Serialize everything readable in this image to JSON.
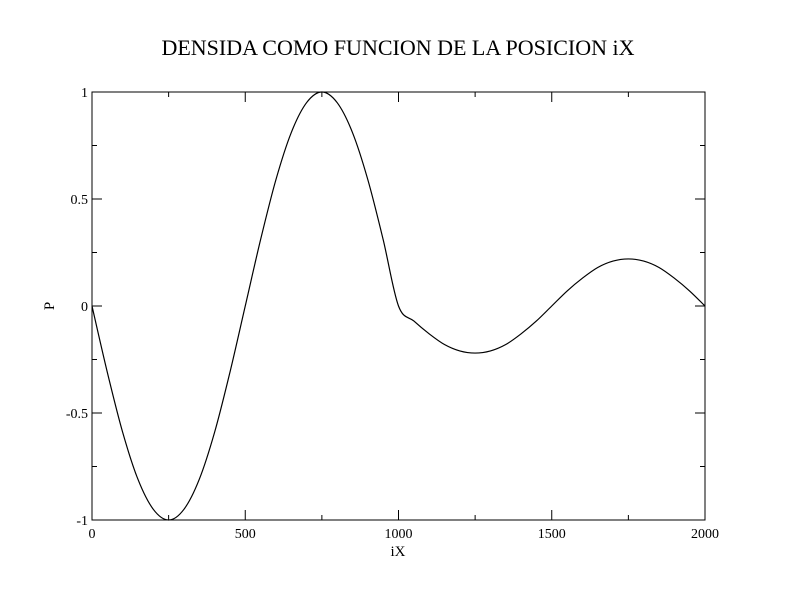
{
  "chart_data": {
    "type": "line",
    "title": "DENSIDA COMO FUNCION DE LA POSICION iX",
    "xlabel": "iX",
    "ylabel": "P",
    "xlim": [
      0,
      2000
    ],
    "ylim": [
      -1,
      1
    ],
    "x_ticks": [
      0,
      500,
      1000,
      1500,
      2000
    ],
    "x_tick_labels": [
      "0",
      "500",
      "1000",
      "1500",
      "2000"
    ],
    "y_ticks": [
      -1,
      -0.5,
      0,
      0.5,
      1
    ],
    "y_tick_labels": [
      "-1",
      "-0.5",
      "0",
      "0.5",
      "1"
    ],
    "grid": false,
    "legend": "none",
    "series": [
      {
        "color": "#000000",
        "x": [
          0,
          50,
          100,
          150,
          200,
          250,
          300,
          350,
          400,
          450,
          500,
          550,
          600,
          650,
          700,
          750,
          800,
          850,
          900,
          950,
          1000,
          1050,
          1100,
          1150,
          1200,
          1250,
          1300,
          1350,
          1400,
          1450,
          1500,
          1550,
          1600,
          1650,
          1700,
          1750,
          1800,
          1850,
          1900,
          1950,
          2000
        ],
        "y": [
          0,
          -0.31,
          -0.59,
          -0.81,
          -0.95,
          -1.0,
          -0.95,
          -0.81,
          -0.59,
          -0.31,
          0,
          0.31,
          0.59,
          0.81,
          0.95,
          1.0,
          0.95,
          0.81,
          0.59,
          0.31,
          0,
          -0.07,
          -0.13,
          -0.18,
          -0.21,
          -0.22,
          -0.21,
          -0.18,
          -0.13,
          -0.07,
          0,
          0.07,
          0.13,
          0.18,
          0.21,
          0.22,
          0.21,
          0.18,
          0.13,
          0.07,
          0
        ]
      }
    ]
  }
}
